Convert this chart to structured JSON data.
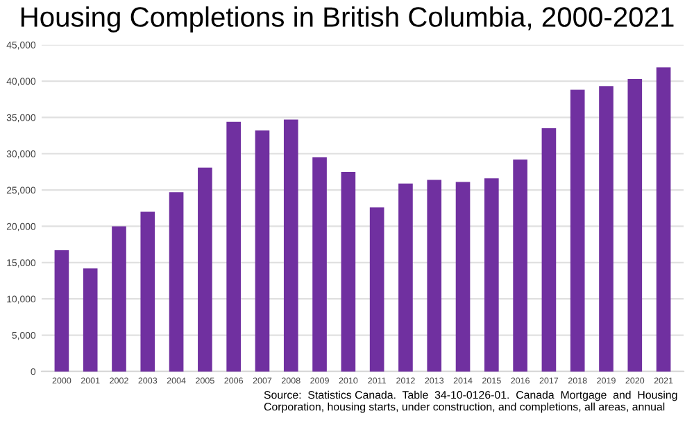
{
  "chart_data": {
    "type": "bar",
    "title": "Housing Completions in British Columbia, 2000-2021",
    "categories": [
      "2000",
      "2001",
      "2002",
      "2003",
      "2004",
      "2005",
      "2006",
      "2007",
      "2008",
      "2009",
      "2010",
      "2011",
      "2012",
      "2013",
      "2014",
      "2015",
      "2016",
      "2017",
      "2018",
      "2019",
      "2020",
      "2021"
    ],
    "values": [
      16700,
      14200,
      20000,
      22000,
      24700,
      28100,
      34400,
      33200,
      34700,
      29500,
      27500,
      22600,
      25900,
      26400,
      26100,
      26600,
      29200,
      33500,
      38800,
      39300,
      40300,
      41900
    ],
    "color": "#7030a0",
    "ylim": [
      0,
      45000
    ],
    "yticks": [
      {
        "value": 0,
        "label": "0"
      },
      {
        "value": 5000,
        "label": "5,000"
      },
      {
        "value": 10000,
        "label": "10,000"
      },
      {
        "value": 15000,
        "label": "15,000"
      },
      {
        "value": 20000,
        "label": "20,000"
      },
      {
        "value": 25000,
        "label": "25,000"
      },
      {
        "value": 30000,
        "label": "30,000"
      },
      {
        "value": 35000,
        "label": "35,000"
      },
      {
        "value": 40000,
        "label": "40,000"
      },
      {
        "value": 45000,
        "label": "45,000"
      }
    ],
    "grid": "y",
    "annotations": [
      "Source:  Statistics Canada.  Table  34-10-0126-01.  Canada  Mortgage  and  Housing Corporation, housing starts, under construction, and completions, all areas, annual"
    ]
  }
}
